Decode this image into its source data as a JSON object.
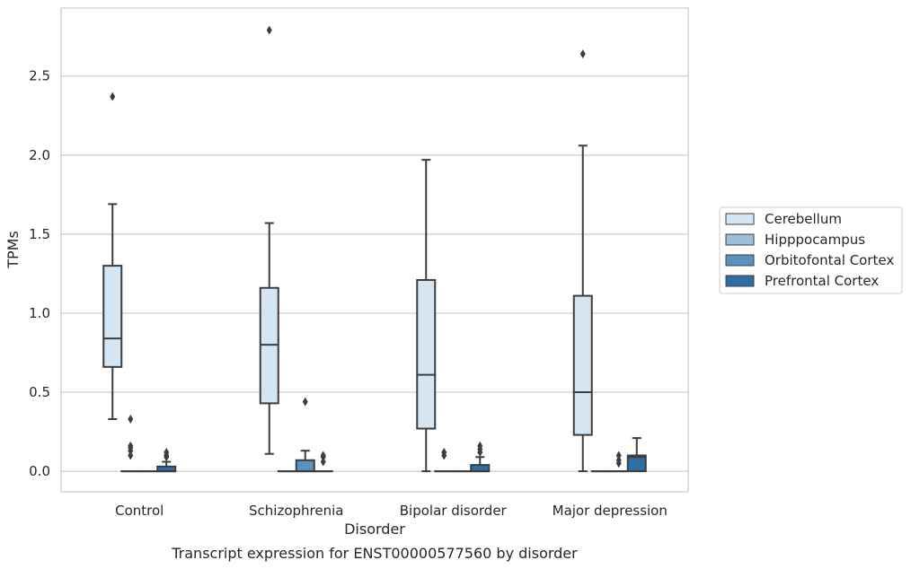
{
  "chart_data": {
    "type": "box",
    "title": "",
    "caption": "Transcript expression for ENST00000577560 by disorder",
    "xlabel": "Disorder",
    "ylabel": "TPMs",
    "ylim": [
      -0.13,
      2.93
    ],
    "yticks": [
      0.0,
      0.5,
      1.0,
      1.5,
      2.0,
      2.5
    ],
    "ytick_labels": [
      "0.0",
      "0.5",
      "1.0",
      "1.5",
      "2.0",
      "2.5"
    ],
    "grid": "horizontal",
    "legend_position": "right",
    "categories": [
      "Control",
      "Schizophrenia",
      "Bipolar disorder",
      "Major depression"
    ],
    "series": [
      {
        "name": "Cerebellum",
        "color": "#d6e5f2",
        "boxes": [
          {
            "whislo": 0.33,
            "q1": 0.66,
            "med": 0.84,
            "q3": 1.3,
            "whishi": 1.69,
            "fliers": [
              2.37
            ]
          },
          {
            "whislo": 0.11,
            "q1": 0.43,
            "med": 0.8,
            "q3": 1.16,
            "whishi": 1.57,
            "fliers": [
              2.79
            ]
          },
          {
            "whislo": 0.0,
            "q1": 0.27,
            "med": 0.61,
            "q3": 1.21,
            "whishi": 1.97,
            "fliers": []
          },
          {
            "whislo": 0.0,
            "q1": 0.23,
            "med": 0.5,
            "q3": 1.11,
            "whishi": 2.06,
            "fliers": [
              2.64
            ]
          }
        ]
      },
      {
        "name": "Hipppocampus",
        "color": "#9ebfd9",
        "boxes": [
          {
            "whislo": 0.0,
            "q1": 0.0,
            "med": 0.0,
            "q3": 0.0,
            "whishi": 0.0,
            "fliers": [
              0.1,
              0.16,
              0.15,
              0.13,
              0.33
            ]
          },
          {
            "whislo": 0.0,
            "q1": 0.0,
            "med": 0.0,
            "q3": 0.0,
            "whishi": 0.0,
            "fliers": []
          },
          {
            "whislo": 0.0,
            "q1": 0.0,
            "med": 0.0,
            "q3": 0.0,
            "whishi": 0.0,
            "fliers": [
              0.1,
              0.12
            ]
          },
          {
            "whislo": 0.0,
            "q1": 0.0,
            "med": 0.0,
            "q3": 0.0,
            "whishi": 0.0,
            "fliers": []
          }
        ]
      },
      {
        "name": "Orbitofontal Cortex",
        "color": "#5a92bf",
        "boxes": [
          {
            "whislo": 0.0,
            "q1": 0.0,
            "med": 0.0,
            "q3": 0.0,
            "whishi": 0.0,
            "fliers": []
          },
          {
            "whislo": 0.0,
            "q1": 0.0,
            "med": 0.0,
            "q3": 0.07,
            "whishi": 0.13,
            "fliers": [
              0.44
            ]
          },
          {
            "whislo": 0.0,
            "q1": 0.0,
            "med": 0.0,
            "q3": 0.0,
            "whishi": 0.0,
            "fliers": []
          },
          {
            "whislo": 0.0,
            "q1": 0.0,
            "med": 0.0,
            "q3": 0.0,
            "whishi": 0.0,
            "fliers": [
              0.05,
              0.07,
              0.1
            ]
          }
        ]
      },
      {
        "name": "Prefrontal Cortex",
        "color": "#2f6ea5",
        "boxes": [
          {
            "whislo": 0.0,
            "q1": 0.0,
            "med": 0.0,
            "q3": 0.03,
            "whishi": 0.06,
            "fliers": [
              0.09,
              0.1,
              0.12
            ]
          },
          {
            "whislo": 0.0,
            "q1": 0.0,
            "med": 0.0,
            "q3": 0.0,
            "whishi": 0.0,
            "fliers": [
              0.06,
              0.09,
              0.1
            ]
          },
          {
            "whislo": 0.0,
            "q1": 0.0,
            "med": 0.0,
            "q3": 0.04,
            "whishi": 0.09,
            "fliers": [
              0.12,
              0.14,
              0.16
            ]
          },
          {
            "whislo": 0.0,
            "q1": 0.0,
            "med": 0.09,
            "q3": 0.1,
            "whishi": 0.21,
            "fliers": []
          }
        ]
      }
    ]
  }
}
